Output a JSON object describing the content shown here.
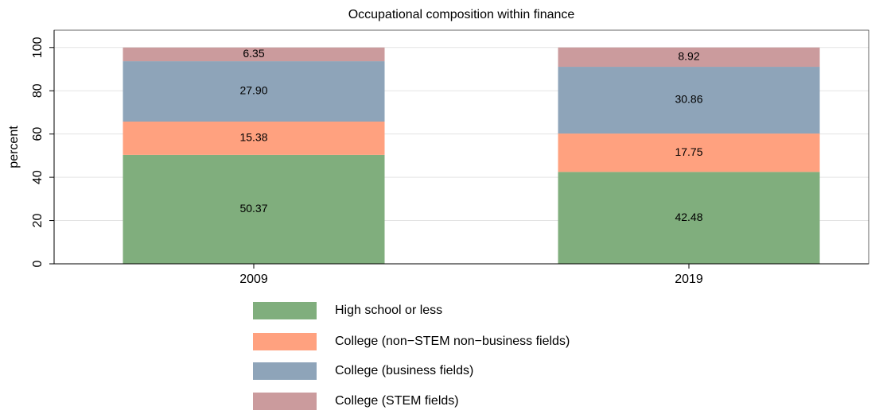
{
  "chart_data": {
    "type": "stacked_bar",
    "title": "Occupational composition within finance",
    "y_label": "percent",
    "categories": [
      "2009",
      "2019"
    ],
    "series": [
      {
        "name": "High school or less",
        "color": "#80ae7d",
        "values": [
          50.37,
          42.48
        ],
        "value_labels": [
          "50.37",
          "42.48"
        ]
      },
      {
        "name": "College (non−STEM non−business fields)",
        "color": "#ffa17f",
        "values": [
          15.38,
          17.75
        ],
        "value_labels": [
          "15.38",
          "17.75"
        ]
      },
      {
        "name": "College (business fields)",
        "color": "#8ea4b9",
        "values": [
          27.9,
          30.86
        ],
        "value_labels": [
          "27.90",
          "30.86"
        ]
      },
      {
        "name": "College (STEM fields)",
        "color": "#cb9b9d",
        "values": [
          6.35,
          8.92
        ],
        "value_labels": [
          "6.35",
          "8.92"
        ]
      }
    ],
    "ylim": [
      0,
      108
    ],
    "yticks": [
      0,
      20,
      40,
      60,
      80,
      100
    ],
    "grid": true
  }
}
